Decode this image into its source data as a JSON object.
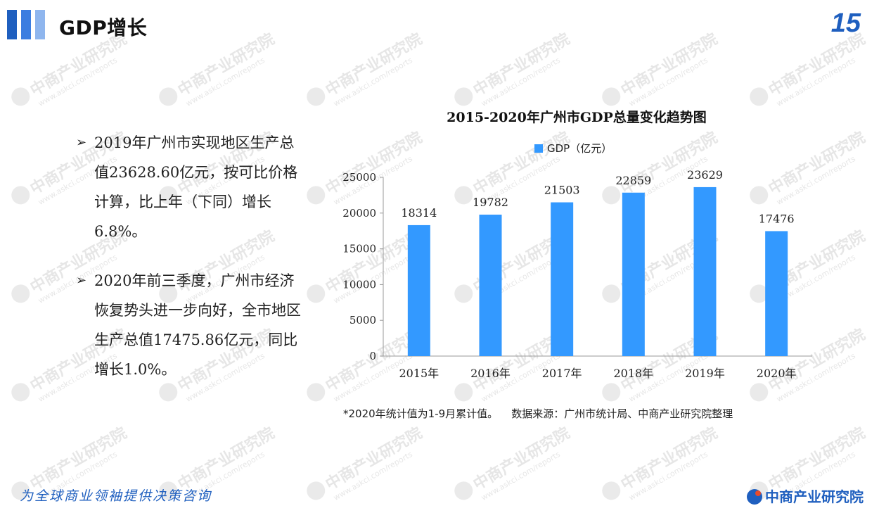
{
  "header": {
    "title": "GDP增长",
    "page_number": "15"
  },
  "watermark": {
    "text": "中商产业研究院",
    "url": "www.askci.com/reports"
  },
  "bullets": [
    {
      "text": "2019年广州市实现地区生产总值23628.60亿元，按可比价格计算，比上年（下同）增长6.8%。"
    },
    {
      "text": "2020年前三季度，广州市经济恢复势头进一步向好，全市地区生产总值17475.86亿元，同比增长1.0%。"
    }
  ],
  "chart_data": {
    "type": "bar",
    "title": "2015-2020年广州市GDP总量变化趋势图",
    "categories": [
      "2015年",
      "2016年",
      "2017年",
      "2018年",
      "2019年",
      "2020年"
    ],
    "series": [
      {
        "name": "GDP（亿元）",
        "values": [
          18314,
          19782,
          21503,
          22859,
          23629,
          17476
        ],
        "color": "#3399ff"
      }
    ],
    "ylim": [
      0,
      25000
    ],
    "yticks": [
      0,
      5000,
      10000,
      15000,
      20000,
      25000
    ],
    "legend_position": "top",
    "grid": false,
    "xlabel": "",
    "ylabel": ""
  },
  "note": "*2020年统计值为1-9月累计值。    数据来源：广州市统计局、中商产业研究院整理",
  "footer": {
    "tagline": "为全球商业领袖提供决策咨询",
    "brand": "中商产业研究院"
  },
  "colors": {
    "accent": "#1f5fbf",
    "bar": "#3399ff"
  }
}
